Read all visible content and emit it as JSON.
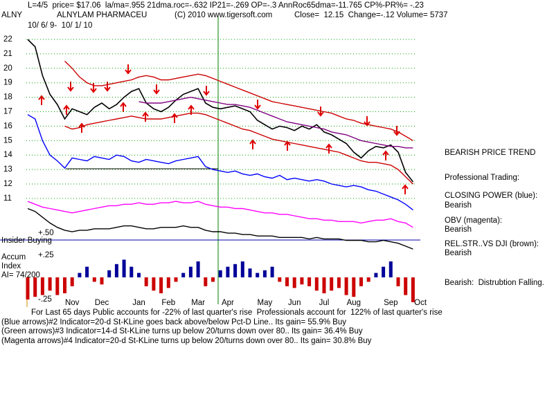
{
  "header": {
    "line1": "L=4/5  price= $17.06  la/ma=.955 21dma.roc=-.632 IP21=-.269 OP=-.3 AnnRoc65dma=-11.765 CP%-PR%= -.23",
    "symbol": "ALNY",
    "company": "ALNYLAM PHARMACEU",
    "copyright": "(C) 2010 www.tigersoft.com",
    "quote": "Close=  12.15  Change=-.12 Volume= 5737",
    "date_range": "10/ 6/ 9-  10/ 1/ 10"
  },
  "side_notes": [
    "BEARISH PRICE TREND",
    "Professional Trading:",
    "CLOSING POWER (blue):",
    "Bearish",
    "OBV (magenta):",
    "Bearish",
    "REL.STR..VS DJI (brown):",
    "Bearish",
    "Bearish:  Distrubtion Falling."
  ],
  "panel_labels": [
    "Insider Buying",
    "Accum",
    "Index",
    "AI= 74/200"
  ],
  "footer": [
    "For Last 65 days Public accounts for -22% of last quarter's rise  Professionals account for  122% of last quarter's rise",
    "(Blue arrows)#2 Indicator=20-d St-KLine goes back above/below Pct-D Line.. Its gain= 55.9% Buy",
    "(Green arrows)#3 Indicator=14-d St-KLine turns up below 20/turns down over 80.. Its gain= 36.4% Buy",
    "(Magenta arrows)#4 Indicator=20-d St-KLine turns up below 20/turns down over 80.. Its gain= 30.8% Buy"
  ],
  "chart_data": [
    {
      "type": "line",
      "categories": [
        null,
        null,
        null,
        null,
        null,
        null,
        "Nov",
        null,
        null,
        null,
        "Dec",
        null,
        null,
        null,
        null,
        "Jan",
        null,
        null,
        null,
        "Feb",
        null,
        null,
        null,
        "Mar",
        null,
        null,
        null,
        "Apr",
        null,
        null,
        null,
        null,
        "May",
        null,
        null,
        null,
        "Jun",
        null,
        null,
        null,
        "Jul",
        null,
        null,
        null,
        "Aug",
        null,
        null,
        null,
        null,
        "Sep",
        null,
        null,
        null,
        "Oct"
      ],
      "ylim": [
        7,
        22.5
      ],
      "yticks": [
        11,
        12,
        13,
        14,
        15,
        16,
        17,
        18,
        19,
        20,
        21,
        22
      ],
      "grid": true,
      "grid_color": "#00a000",
      "series": [
        {
          "color": "#cc0000",
          "values": [
            null,
            null,
            null,
            null,
            null,
            20.5,
            20.0,
            19.4,
            19.0,
            18.8,
            18.8,
            18.9,
            19.0,
            19.1,
            19.2,
            19.4,
            19.5,
            19.4,
            19.2,
            19.2,
            19.3,
            19.4,
            19.5,
            19.6,
            19.5,
            19.3,
            19.1,
            18.9,
            18.7,
            18.5,
            18.3,
            18.1,
            17.9,
            17.7,
            17.6,
            17.5,
            17.4,
            17.3,
            17.2,
            17.1,
            17.0,
            16.9,
            16.7,
            16.5,
            16.4,
            16.2,
            16.1,
            16.0,
            15.9,
            15.8,
            15.6,
            15.3,
            15.0,
            null
          ]
        },
        {
          "color": "#cc0000",
          "values": [
            null,
            null,
            null,
            null,
            null,
            16.0,
            15.8,
            15.9,
            16.1,
            16.2,
            16.3,
            16.4,
            16.5,
            16.6,
            16.7,
            16.6,
            16.5,
            16.5,
            16.5,
            16.6,
            16.7,
            16.8,
            16.9,
            16.9,
            16.8,
            16.6,
            16.4,
            16.2,
            16.0,
            15.8,
            15.7,
            15.5,
            15.3,
            15.1,
            15.0,
            14.9,
            14.8,
            14.7,
            14.6,
            14.5,
            14.4,
            14.3,
            14.2,
            14.0,
            13.8,
            13.6,
            13.5,
            13.5,
            13.4,
            13.3,
            13.0,
            12.5,
            12.0,
            null
          ]
        },
        {
          "color": "#000000",
          "values": [
            22,
            21.5,
            19.5,
            18.2,
            17.5,
            16.5,
            17.2,
            17,
            16.8,
            17.3,
            17.6,
            17.2,
            17.5,
            18,
            18.4,
            18.6,
            17.6,
            17.2,
            17,
            17.3,
            17.8,
            18.2,
            18.4,
            18.6,
            17.6,
            17.3,
            17.2,
            17.3,
            17.4,
            17.2,
            17,
            16.4,
            16.1,
            15.8,
            16,
            15.9,
            15.7,
            16,
            15.8,
            16.1,
            15.6,
            15.4,
            15.1,
            14.8,
            14.2,
            13.8,
            14.3,
            14.6,
            14.5,
            14.7,
            14.2,
            12.8,
            12.15,
            null
          ]
        },
        {
          "color": "#800080",
          "values": [
            null,
            null,
            null,
            null,
            null,
            null,
            null,
            null,
            null,
            null,
            null,
            null,
            null,
            null,
            null,
            17.7,
            17.6,
            17.6,
            17.6,
            17.7,
            17.8,
            17.9,
            18.0,
            17.9,
            17.8,
            17.7,
            17.6,
            17.5,
            17.5,
            17.4,
            17.3,
            17.1,
            16.9,
            16.7,
            16.5,
            16.3,
            16.2,
            16.1,
            16.0,
            15.9,
            15.8,
            15.6,
            15.5,
            15.4,
            15.2,
            15.0,
            14.9,
            14.8,
            14.7,
            14.6,
            14.6,
            14.5,
            14.5,
            null
          ]
        },
        {
          "color": "#0000ff",
          "values": [
            16.8,
            16.5,
            15.0,
            14.0,
            13.6,
            13.1,
            13.8,
            13.7,
            13.6,
            13.9,
            13.8,
            13.7,
            14.0,
            13.9,
            13.6,
            13.5,
            13.7,
            13.6,
            13.5,
            13.4,
            13.6,
            13.7,
            13.8,
            13.9,
            13.2,
            13.0,
            12.9,
            12.8,
            12.9,
            12.7,
            12.6,
            12.7,
            12.5,
            12.4,
            12.6,
            12.3,
            12.4,
            12.3,
            12.2,
            12.3,
            12.2,
            12.0,
            11.9,
            11.8,
            11.9,
            11.8,
            11.6,
            11.5,
            11.3,
            11.1,
            10.9,
            10.6,
            10.2,
            null
          ]
        },
        {
          "color": "#ff00ff",
          "values": [
            10.8,
            10.6,
            10.4,
            10.3,
            10.2,
            10.1,
            10.0,
            10.1,
            10.2,
            10.3,
            10.4,
            10.5,
            10.5,
            10.6,
            10.6,
            10.7,
            10.6,
            10.6,
            10.7,
            10.7,
            10.8,
            10.7,
            10.7,
            10.8,
            10.6,
            10.5,
            10.4,
            10.4,
            10.3,
            10.3,
            10.2,
            10.1,
            10.0,
            10.0,
            9.9,
            9.9,
            9.8,
            9.7,
            9.6,
            9.6,
            9.5,
            9.5,
            9.4,
            9.4,
            9.4,
            9.3,
            9.4,
            9.5,
            9.5,
            9.6,
            9.4,
            9.3,
            9.0,
            null
          ]
        },
        {
          "color": "#000000",
          "values": [
            10.3,
            10.1,
            9.7,
            9.3,
            9.0,
            8.8,
            8.7,
            8.8,
            8.8,
            8.9,
            8.9,
            8.9,
            9.0,
            9.1,
            9.1,
            9.0,
            8.9,
            8.9,
            9.0,
            9.0,
            9.0,
            9.1,
            9.0,
            9.0,
            8.8,
            8.7,
            8.7,
            8.6,
            8.6,
            8.5,
            8.5,
            8.4,
            8.4,
            8.4,
            8.3,
            8.3,
            8.3,
            8.3,
            8.2,
            8.3,
            8.2,
            8.2,
            8.2,
            8.1,
            8.1,
            8.1,
            8.0,
            8.0,
            8.1,
            8.0,
            7.9,
            7.7,
            7.5,
            null
          ]
        }
      ]
    },
    {
      "type": "bar",
      "ylim": [
        -0.35,
        0.55
      ],
      "yticks": [
        {
          "value": 0.5,
          "label": "+.50"
        },
        {
          "value": 0.25,
          "label": "+.25"
        },
        {
          "value": -0.25,
          "label": "-.25"
        }
      ],
      "grid": false,
      "pos_color": "#000099",
      "neg_color": "#cc0000",
      "values": [
        -0.25,
        -0.22,
        -0.2,
        -0.15,
        -0.2,
        -0.18,
        -0.1,
        0.05,
        0.12,
        -0.05,
        -0.08,
        0.08,
        0.15,
        0.2,
        0.12,
        0.05,
        -0.1,
        -0.15,
        -0.18,
        -0.12,
        -0.05,
        0.05,
        0.12,
        0.18,
        -0.1,
        -0.05,
        0.08,
        0.12,
        0.15,
        0.18,
        0.1,
        0.05,
        0.08,
        0.12,
        -0.05,
        -0.1,
        -0.12,
        -0.08,
        -0.1,
        -0.15,
        -0.18,
        -0.15,
        -0.12,
        -0.2,
        -0.22,
        -0.1,
        -0.05,
        0.05,
        0.12,
        0.18,
        -0.1,
        -0.2,
        -0.28,
        null
      ]
    }
  ]
}
